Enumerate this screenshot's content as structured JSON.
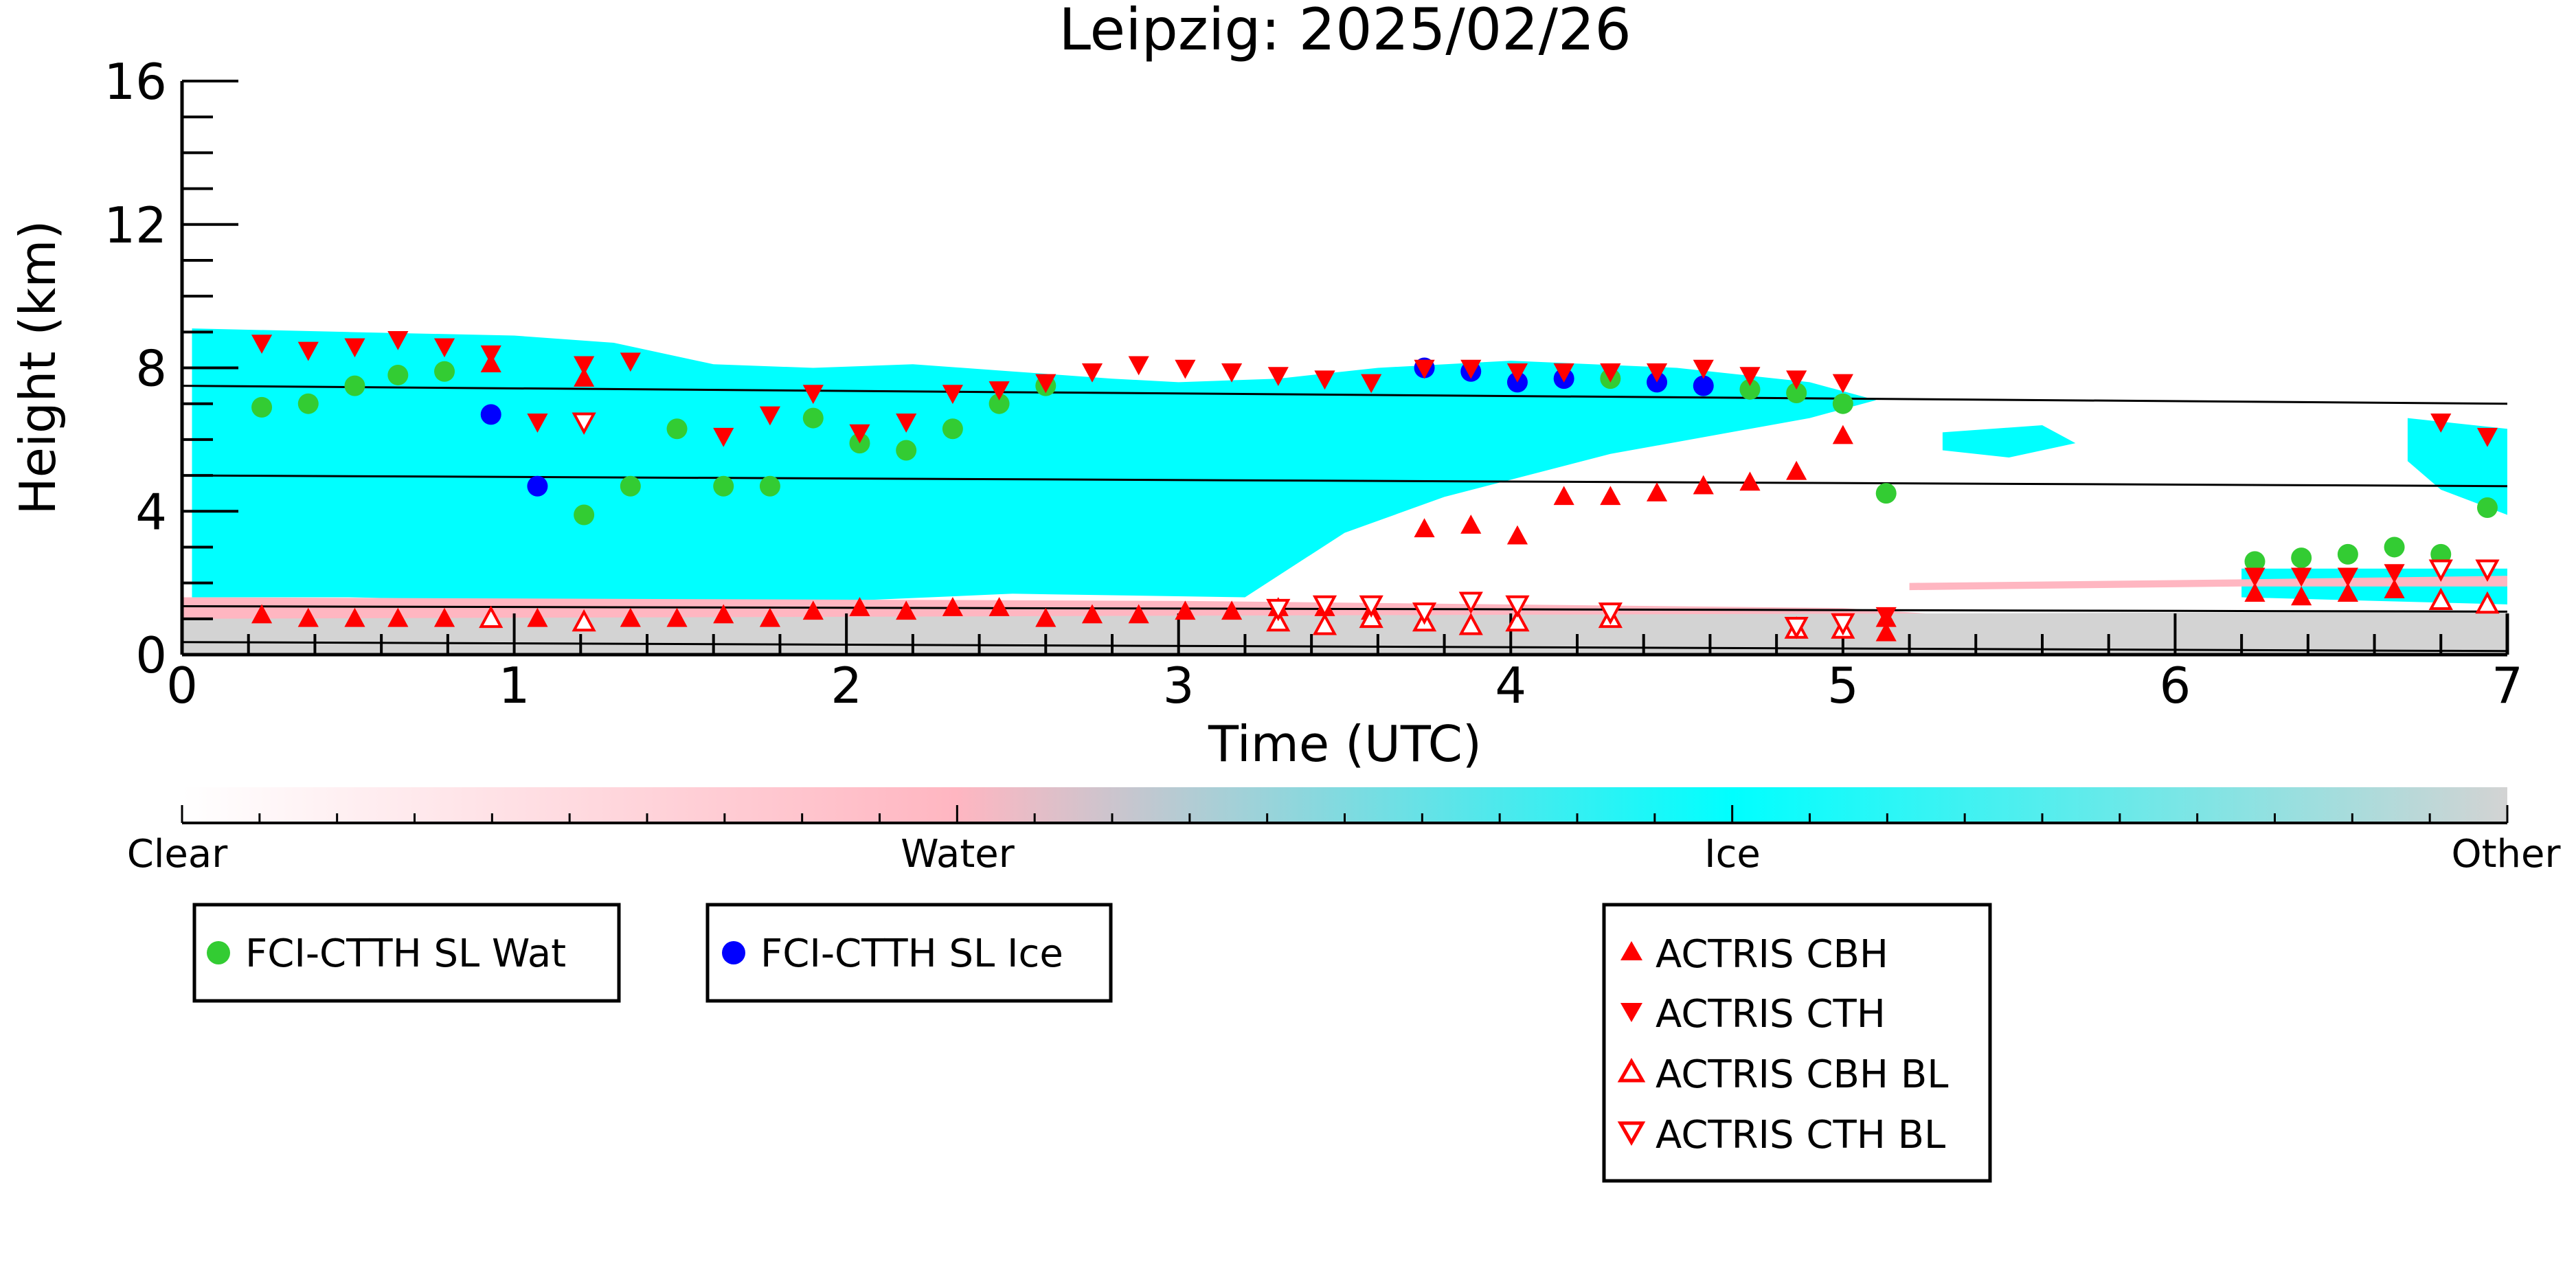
{
  "chart_data": {
    "type": "scatter",
    "title": "Leipzig: 2025/02/26",
    "xlabel": "Time (UTC)",
    "ylabel": "Height (km)",
    "xlim": [
      0,
      7
    ],
    "ylim": [
      0,
      16
    ],
    "x_ticks": [
      "0",
      "1",
      "2",
      "3",
      "4",
      "5",
      "6",
      "7"
    ],
    "y_ticks": [
      "0",
      "4",
      "8",
      "12",
      "16"
    ],
    "colorbar": {
      "labels": [
        "Clear",
        "Water",
        "Ice",
        "Other"
      ],
      "colors": [
        "#ffffff",
        "#ffb6c1",
        "#00ffff",
        "#d3d3d3"
      ]
    },
    "background_lines": [
      {
        "x": [
          0,
          7
        ],
        "y": [
          7.5,
          7.0
        ]
      },
      {
        "x": [
          0,
          7
        ],
        "y": [
          5.0,
          4.7
        ]
      },
      {
        "x": [
          0,
          7
        ],
        "y": [
          1.35,
          1.2
        ]
      },
      {
        "x": [
          0,
          7
        ],
        "y": [
          0.35,
          0.1
        ]
      }
    ],
    "cloud_regions": [
      {
        "type": "ice",
        "points": [
          [
            0.03,
            9.1
          ],
          [
            0.5,
            9.0
          ],
          [
            1.0,
            8.9
          ],
          [
            1.3,
            8.7
          ],
          [
            1.6,
            8.1
          ],
          [
            1.9,
            8.0
          ],
          [
            2.2,
            8.1
          ],
          [
            2.5,
            7.9
          ],
          [
            2.8,
            7.7
          ],
          [
            3.0,
            7.6
          ],
          [
            3.3,
            7.7
          ],
          [
            3.6,
            8.0
          ],
          [
            4.0,
            8.2
          ],
          [
            4.5,
            8.0
          ],
          [
            4.9,
            7.6
          ],
          [
            5.1,
            7.1
          ],
          [
            4.9,
            6.6
          ],
          [
            4.3,
            5.6
          ],
          [
            3.8,
            4.4
          ],
          [
            3.5,
            3.4
          ],
          [
            3.2,
            1.6
          ],
          [
            2.5,
            1.7
          ],
          [
            2.0,
            1.5
          ],
          [
            1.5,
            1.5
          ],
          [
            1.0,
            1.5
          ],
          [
            0.5,
            1.6
          ],
          [
            0.03,
            1.6
          ]
        ]
      },
      {
        "type": "ice",
        "points": [
          [
            5.3,
            6.2
          ],
          [
            5.6,
            6.4
          ],
          [
            5.7,
            5.9
          ],
          [
            5.5,
            5.5
          ],
          [
            5.3,
            5.7
          ]
        ]
      },
      {
        "type": "ice",
        "points": [
          [
            6.7,
            6.6
          ],
          [
            7.0,
            6.3
          ],
          [
            7.0,
            3.9
          ],
          [
            6.8,
            4.6
          ],
          [
            6.7,
            5.4
          ]
        ]
      },
      {
        "type": "ice",
        "points": [
          [
            6.2,
            2.4
          ],
          [
            7.0,
            2.4
          ],
          [
            7.0,
            1.4
          ],
          [
            6.2,
            1.6
          ]
        ]
      },
      {
        "type": "water",
        "points": [
          [
            5.2,
            2.0
          ],
          [
            6.2,
            2.1
          ],
          [
            7.0,
            2.2
          ],
          [
            7.0,
            1.9
          ],
          [
            6.2,
            1.9
          ],
          [
            5.2,
            1.8
          ]
        ]
      },
      {
        "type": "water",
        "points": [
          [
            0.0,
            1.6
          ],
          [
            3.0,
            1.5
          ],
          [
            5.0,
            1.3
          ],
          [
            5.5,
            1.0
          ],
          [
            5.0,
            0.8
          ],
          [
            3.0,
            0.9
          ],
          [
            0.0,
            1.0
          ]
        ]
      },
      {
        "type": "other",
        "points": [
          [
            0.0,
            1.0
          ],
          [
            7.0,
            1.2
          ],
          [
            7.0,
            0.0
          ],
          [
            0.0,
            0.0
          ]
        ]
      }
    ],
    "legend": {
      "fci_wat": "FCI-CTTH SL Wat",
      "fci_ice": "FCI-CTTH SL Ice",
      "cbh": "ACTRIS CBH",
      "cth": "ACTRIS CTH",
      "cbh_bl": "ACTRIS CBH BL",
      "cth_bl": "ACTRIS CTH BL"
    },
    "colors": {
      "fci_wat": "#33cc33",
      "fci_ice": "#0000ff",
      "actris": "#ff0000"
    },
    "series": [
      {
        "name": "FCI-CTTH SL Wat",
        "x": [
          0.24,
          0.38,
          0.52,
          0.65,
          0.79,
          1.21,
          1.35,
          1.49,
          1.63,
          1.77,
          1.9,
          2.04,
          2.18,
          2.32,
          2.46,
          2.6,
          4.3,
          4.72,
          4.86,
          5.0,
          5.13,
          6.24,
          6.38,
          6.52,
          6.66,
          6.8,
          6.94
        ],
        "y": [
          6.9,
          7.0,
          7.5,
          7.8,
          7.9,
          3.9,
          4.7,
          6.3,
          4.7,
          4.7,
          6.6,
          5.9,
          5.7,
          6.3,
          7.0,
          7.5,
          7.7,
          7.4,
          7.3,
          7.0,
          4.5,
          2.6,
          2.7,
          2.8,
          3.0,
          2.8,
          4.1
        ]
      },
      {
        "name": "FCI-CTTH SL Ice",
        "x": [
          0.93,
          1.07,
          3.74,
          3.88,
          4.02,
          4.16,
          4.44,
          4.58
        ],
        "y": [
          6.7,
          4.7,
          8.0,
          7.9,
          7.6,
          7.7,
          7.6,
          7.5
        ]
      },
      {
        "name": "ACTRIS CBH",
        "x": [
          0.24,
          0.38,
          0.52,
          0.65,
          0.79,
          0.93,
          1.07,
          1.21,
          1.35,
          1.49,
          1.63,
          1.77,
          1.9,
          2.04,
          2.18,
          2.32,
          2.46,
          2.6,
          2.74,
          2.88,
          3.02,
          3.16,
          3.3,
          3.44,
          3.58,
          3.74,
          3.88,
          4.02,
          4.16,
          4.3,
          4.44,
          4.58,
          4.72,
          4.86,
          5.0,
          5.13,
          5.13,
          6.24,
          6.38,
          6.52,
          6.66
        ],
        "y": [
          1.1,
          1.0,
          1.0,
          1.0,
          1.0,
          8.1,
          1.0,
          7.7,
          1.0,
          1.0,
          1.1,
          1.0,
          1.2,
          1.3,
          1.2,
          1.3,
          1.3,
          1.0,
          1.1,
          1.1,
          1.2,
          1.2,
          1.3,
          1.3,
          1.2,
          3.5,
          3.6,
          3.3,
          4.4,
          4.4,
          4.5,
          4.7,
          4.8,
          5.1,
          6.1,
          1.0,
          0.6,
          1.7,
          1.6,
          1.7,
          1.8
        ]
      },
      {
        "name": "ACTRIS CTH",
        "x": [
          0.24,
          0.38,
          0.52,
          0.65,
          0.79,
          0.93,
          1.07,
          1.21,
          1.35,
          1.63,
          1.77,
          1.9,
          2.04,
          2.18,
          2.32,
          2.46,
          2.6,
          2.74,
          2.88,
          3.02,
          3.16,
          3.3,
          3.44,
          3.58,
          3.74,
          3.88,
          4.02,
          4.16,
          4.3,
          4.44,
          4.58,
          4.72,
          4.86,
          5.0,
          5.13,
          6.24,
          6.38,
          6.52,
          6.66,
          6.8,
          6.94
        ],
        "y": [
          8.7,
          8.5,
          8.6,
          8.8,
          8.6,
          8.4,
          6.5,
          8.1,
          8.2,
          6.1,
          6.7,
          7.3,
          6.2,
          6.5,
          7.3,
          7.4,
          7.6,
          7.9,
          8.1,
          8.0,
          7.9,
          7.8,
          7.7,
          7.6,
          8.0,
          8.0,
          7.9,
          7.9,
          7.9,
          7.9,
          8.0,
          7.8,
          7.7,
          7.6,
          1.1,
          2.2,
          2.2,
          2.2,
          2.3,
          6.5,
          6.1
        ]
      },
      {
        "name": "ACTRIS CBH BL",
        "x": [
          0.93,
          1.21,
          3.3,
          3.44,
          3.58,
          3.74,
          3.88,
          4.02,
          4.3,
          4.86,
          5.0,
          6.8,
          6.94
        ],
        "y": [
          1.0,
          0.9,
          0.9,
          0.8,
          1.0,
          0.9,
          0.8,
          0.9,
          1.0,
          0.7,
          0.7,
          1.5,
          1.4
        ]
      },
      {
        "name": "ACTRIS CTH BL",
        "x": [
          1.21,
          3.3,
          3.44,
          3.58,
          3.74,
          3.88,
          4.02,
          4.3,
          4.86,
          5.0,
          6.8,
          6.94
        ],
        "y": [
          6.5,
          1.3,
          1.4,
          1.4,
          1.2,
          1.5,
          1.4,
          1.2,
          0.8,
          0.9,
          2.4,
          2.4
        ]
      }
    ]
  }
}
